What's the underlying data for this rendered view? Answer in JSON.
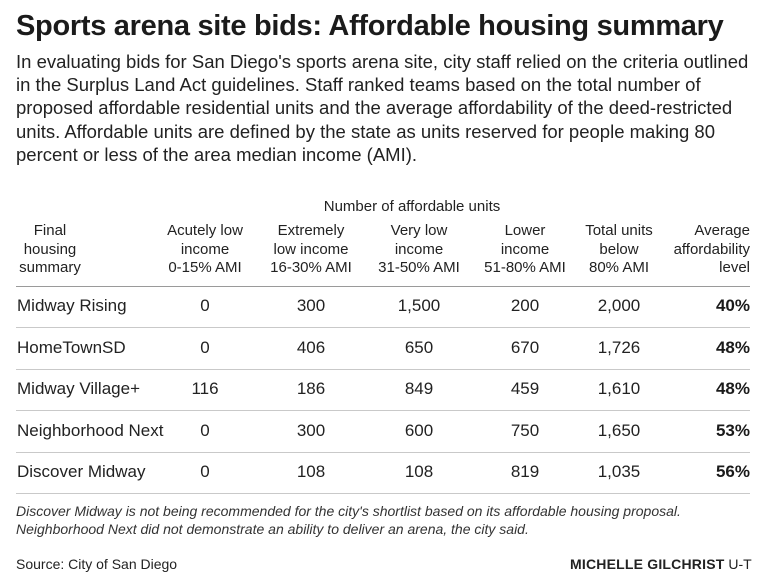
{
  "title": "Sports arena site bids: Affordable housing summary",
  "intro": "In evaluating bids for San Diego's sports arena site, city staff relied on the criteria outlined in the Surplus Land Act guidelines. Staff ranked teams based on the total number of proposed affordable residential units and the average affordability of the deed-restricted units. Affordable units are defined by the state as units reserved for people making 80 percent or less of the area median income (AMI).",
  "note": "Discover Midway is not being recommended for the city's shortlist based on its affordable housing proposal. Neighborhood Next did not demonstrate an ability to deliver an arena, the city said.",
  "source": "Source: City of San Diego",
  "credit": {
    "name": "MICHELLE GILCHRIST",
    "org": "U-T"
  },
  "chart_data": {
    "type": "table",
    "title": "Sports arena site bids: Affordable housing summary",
    "group_header": "Number of affordable units",
    "columns": [
      "Final\nhousing\nsummary",
      "Acutely low\nincome\n0-15% AMI",
      "Extremely\nlow income\n16-30% AMI",
      "Very low\nincome\n31-50% AMI",
      "Lower\nincome\n51-80% AMI",
      "Total units\nbelow\n80% AMI",
      "Average\naffordability\nlevel"
    ],
    "rows": [
      [
        "Midway Rising",
        "0",
        "300",
        "1,500",
        "200",
        "2,000",
        "40%"
      ],
      [
        "HomeTownSD",
        "0",
        "406",
        "650",
        "670",
        "1,726",
        "48%"
      ],
      [
        "Midway Village+",
        "116",
        "186",
        "849",
        "459",
        "1,610",
        "48%"
      ],
      [
        "Neighborhood Next",
        "0",
        "300",
        "600",
        "750",
        "1,650",
        "53%"
      ],
      [
        "Discover Midway",
        "0",
        "108",
        "108",
        "819",
        "1,035",
        "56%"
      ]
    ]
  }
}
